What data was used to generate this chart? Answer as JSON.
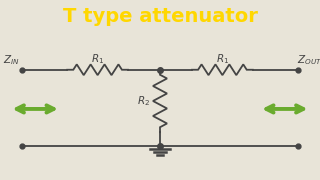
{
  "title": "T type attenuator",
  "title_color": "#FFD700",
  "title_bg_color": "#A020C0",
  "bg_color": "#E8E4D8",
  "circuit_color": "#444444",
  "resistor_color": "#444444",
  "arrow_color": "#6AAB2E",
  "dot_color": "#444444",
  "ground_color": "#444444",
  "fig_w": 3.2,
  "fig_h": 1.8,
  "dpi": 100
}
